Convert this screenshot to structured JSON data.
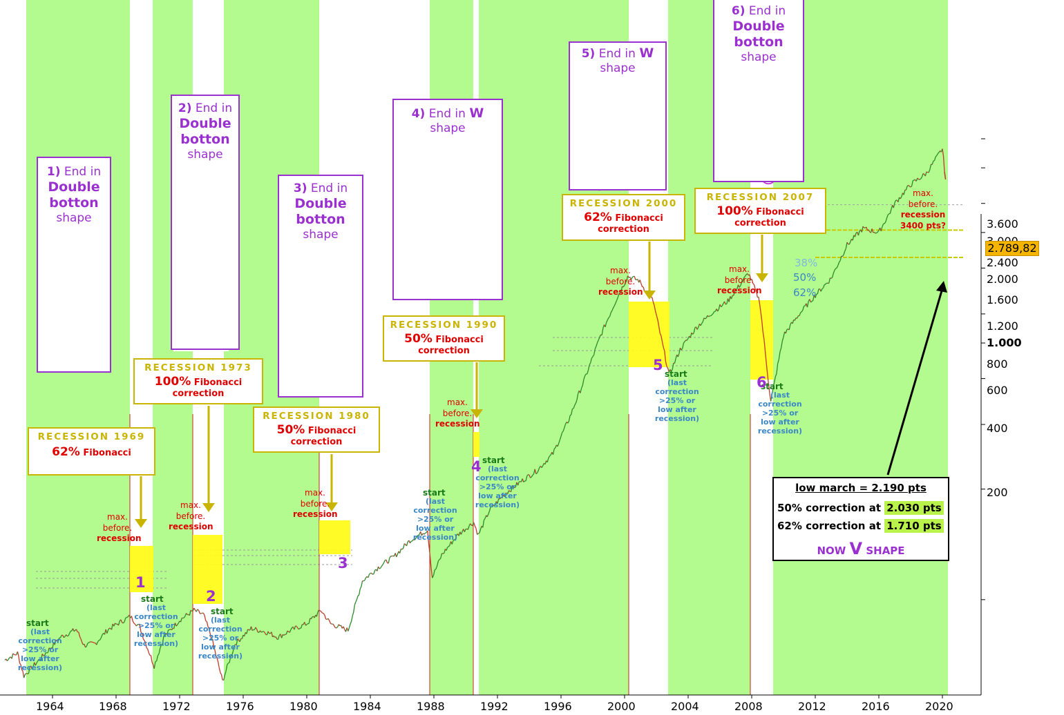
{
  "chart_data": {
    "type": "line",
    "title": "",
    "xlabel": "",
    "ylabel": "",
    "y_scale": "log",
    "ylim": [
      130,
      4300
    ],
    "xlim": [
      1961.0,
      2021.5
    ],
    "x_ticks": [
      1964,
      1968,
      1972,
      1976,
      1980,
      1984,
      1988,
      1992,
      1996,
      2000,
      2004,
      2008,
      2012,
      2016,
      2020
    ],
    "y_ticks": [
      "3.600",
      "3.000",
      "2.400",
      "2.000",
      "1.600",
      "1.200",
      "1.000",
      "800",
      "600",
      "400",
      "200"
    ],
    "last_price": "2.789,82",
    "series": [
      {
        "x": [
          1961.0,
          1961.8,
          1962.2,
          1962.5,
          1963.5,
          1964.5,
          1965.5,
          1966.0,
          1966.7,
          1967.5,
          1968.3,
          1968.9,
          1969.5,
          1970.4,
          1971.0,
          1972.0,
          1972.9,
          1973.5,
          1974.0,
          1974.7,
          1975.5,
          1976.5,
          1977.5,
          1978.2,
          1979.0,
          1980.0,
          1980.9,
          1981.5,
          1982.6,
          1983.5,
          1984.5,
          1985.5,
          1986.5,
          1987.6,
          1987.9,
          1988.5,
          1989.5,
          1990.5,
          1990.8,
          1991.5,
          1992.5,
          1993.5,
          1994.5,
          1995.5,
          1996.5,
          1997.5,
          1998.5,
          1999.5,
          2000.2,
          2000.9,
          2001.8,
          2002.8,
          2003.5,
          2004.5,
          2005.5,
          2006.5,
          2007.8,
          2008.5,
          2009.2,
          2010.0,
          2011.0,
          2012.0,
          2013.0,
          2014.0,
          2015.0,
          2016.0,
          2017.0,
          2018.0,
          2019.0,
          2020.0,
          2020.2
        ],
        "values": [
          137,
          143,
          124,
          128,
          142,
          158,
          166,
          150,
          152,
          166,
          174,
          180,
          168,
          132,
          158,
          176,
          187,
          182,
          158,
          120,
          152,
          167,
          163,
          158,
          165,
          172,
          187,
          172,
          165,
          225,
          245,
          262,
          290,
          310,
          230,
          265,
          300,
          325,
          300,
          350,
          390,
          420,
          450,
          500,
          620,
          800,
          1050,
          1320,
          1520,
          1480,
          1300,
          820,
          960,
          1100,
          1210,
          1300,
          1550,
          1300,
          690,
          1050,
          1200,
          1350,
          1500,
          1850,
          2050,
          2000,
          2400,
          2700,
          2900,
          3380,
          2790
        ]
      }
    ],
    "fib_levels": [
      {
        "label": "38%",
        "value": 2380
      },
      {
        "label": "50%",
        "value": 2030
      },
      {
        "label": "62%",
        "value": 1710
      }
    ],
    "recessions": [
      {
        "label": "RECESSION 1969",
        "fib": "62%",
        "fib_text": "Fibonacci",
        "fib_text2": "",
        "number": "1"
      },
      {
        "label": "RECESSION 1973",
        "fib": "100%",
        "fib_text": "Fibonacci",
        "fib_text2": "correction",
        "number": "2"
      },
      {
        "label": "RECESSION 1980",
        "fib": "50%",
        "fib_text": "Fibonacci",
        "fib_text2": "correction",
        "number": "3"
      },
      {
        "label": "RECESSION 1990",
        "fib": "50%",
        "fib_text": "Fibonacci",
        "fib_text2": "correction",
        "number": "4"
      },
      {
        "label": "RECESSION 2000",
        "fib": "62%",
        "fib_text": "Fibonacci",
        "fib_text2": "correction",
        "number": "5"
      },
      {
        "label": "RECESSION 2007",
        "fib": "100%",
        "fib_text": "Fibonacci",
        "fib_text2": "correction",
        "number": "6"
      }
    ],
    "shapes": [
      {
        "n": "1)",
        "l1": "End in",
        "l2": "Double",
        "l3": "botton",
        "l4": "shape"
      },
      {
        "n": "2)",
        "l1": "End in",
        "l2": "Double",
        "l3": "botton",
        "l4": "shape"
      },
      {
        "n": "3)",
        "l1": "End in",
        "l2": "Double",
        "l3": "botton",
        "l4": "shape"
      },
      {
        "n": "4)",
        "l1": "End in",
        "l2": "W",
        "l3": "",
        "l4": "shape"
      },
      {
        "n": "5)",
        "l1": "End in",
        "l2": "W",
        "l3": "",
        "l4": "shape"
      },
      {
        "n": "6)",
        "l1": "End in",
        "l2": "Double",
        "l3": "botton",
        "l4": "shape"
      }
    ],
    "annotations": {
      "max_before_recession": [
        "max.",
        "before.",
        "recession"
      ],
      "max_before_recession_now": [
        "max.",
        "before.",
        "recession",
        "3400 pts?"
      ],
      "start_label": "start",
      "start_note": [
        "(last",
        "correction",
        ">25% or",
        "low after",
        "recession)"
      ],
      "start_note_first": [
        "(last",
        "correction",
        ">25% or",
        "low  after",
        "recession)"
      ],
      "low_march": "low march = 2.190 pts",
      "corr50_text": "50% correction at",
      "corr50_value": "2.030 pts",
      "corr62_text": "62% correction at",
      "corr62_value": "1.710 pts",
      "now_text": "NOW",
      "now_v": "V",
      "now_shape": "SHAPE"
    }
  },
  "colors": {
    "expansion_band": "#b4fb8f",
    "recession_highlight": "#fffb1a",
    "price_up": "#2a8a2a",
    "price_down": "#c0392b",
    "shape_box": "#9b30d0",
    "recession_box": "#c9b400",
    "fib_text": "#e00000",
    "price_tag": "#f5b400"
  }
}
